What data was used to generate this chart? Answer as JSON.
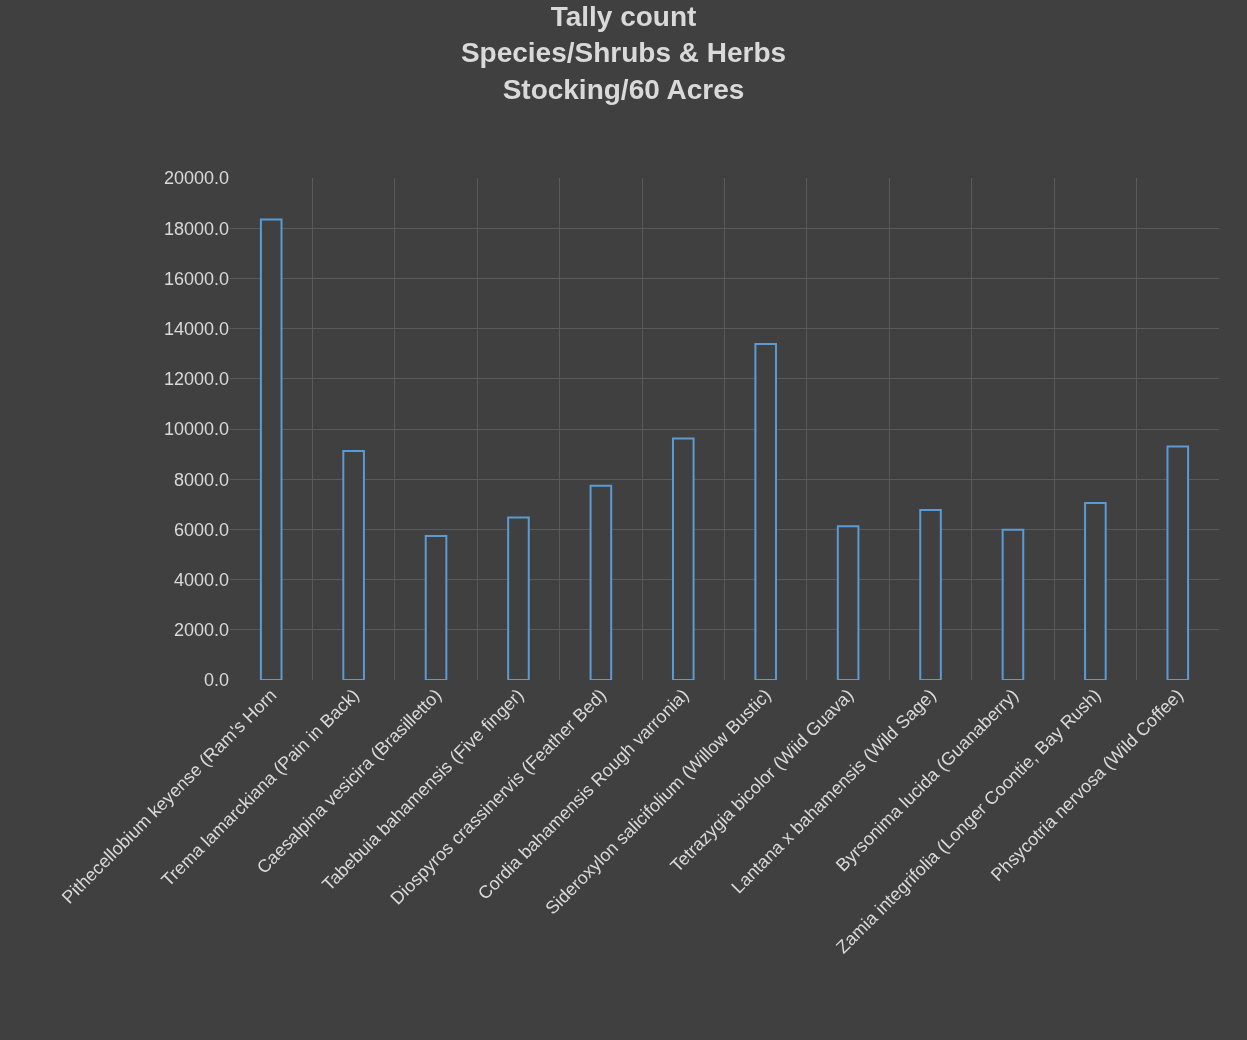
{
  "chart_data": {
    "type": "bar",
    "title": "Tally count\nSpecies/Shrubs & Herbs\nStocking/60 Acres",
    "categories": [
      "Pithecellobium keyense (Ram's Horn",
      "Trema lamarckiana (Pain in Back)",
      "Caesalpina vesicira (Brasilletto)",
      "Tabebuia bahamensis (Five finger)",
      "Diospyros crassinervis (Feather Bed)",
      "Cordia bahamensis Rough varronia)",
      "Sideroxylon salicifolium (Willow Bustic)",
      "Tetrazygia bicolor (Wiid Guava)",
      "Lantana x bahamensis (Wild Sage)",
      "Byrsonima lucida (Guanaberry)",
      "Zamia integrifolia (Longer Coontie, Bay Rush)",
      "Phsycotria nervosa (Wild Coffee)"
    ],
    "series": [
      {
        "color": "#5b9bd5",
        "values": [
          18350,
          9120,
          5740,
          6470,
          7740,
          9620,
          13390,
          6130,
          6770,
          5990,
          7050,
          9300
        ]
      }
    ],
    "ylim": [
      0,
      20000
    ],
    "yticks": [
      {
        "value": 0,
        "label": "0.0"
      },
      {
        "value": 2000,
        "label": "2000.0"
      },
      {
        "value": 4000,
        "label": "4000.0"
      },
      {
        "value": 6000,
        "label": "6000.0"
      },
      {
        "value": 8000,
        "label": "8000.0"
      },
      {
        "value": 10000,
        "label": "10000.0"
      },
      {
        "value": 12000,
        "label": "12000.0"
      },
      {
        "value": 14000,
        "label": "14000.0"
      },
      {
        "value": 16000,
        "label": "16000.0"
      },
      {
        "value": 18000,
        "label": "18000.0"
      },
      {
        "value": 20000,
        "label": "20000.0"
      }
    ],
    "grid": true,
    "legend": false
  }
}
